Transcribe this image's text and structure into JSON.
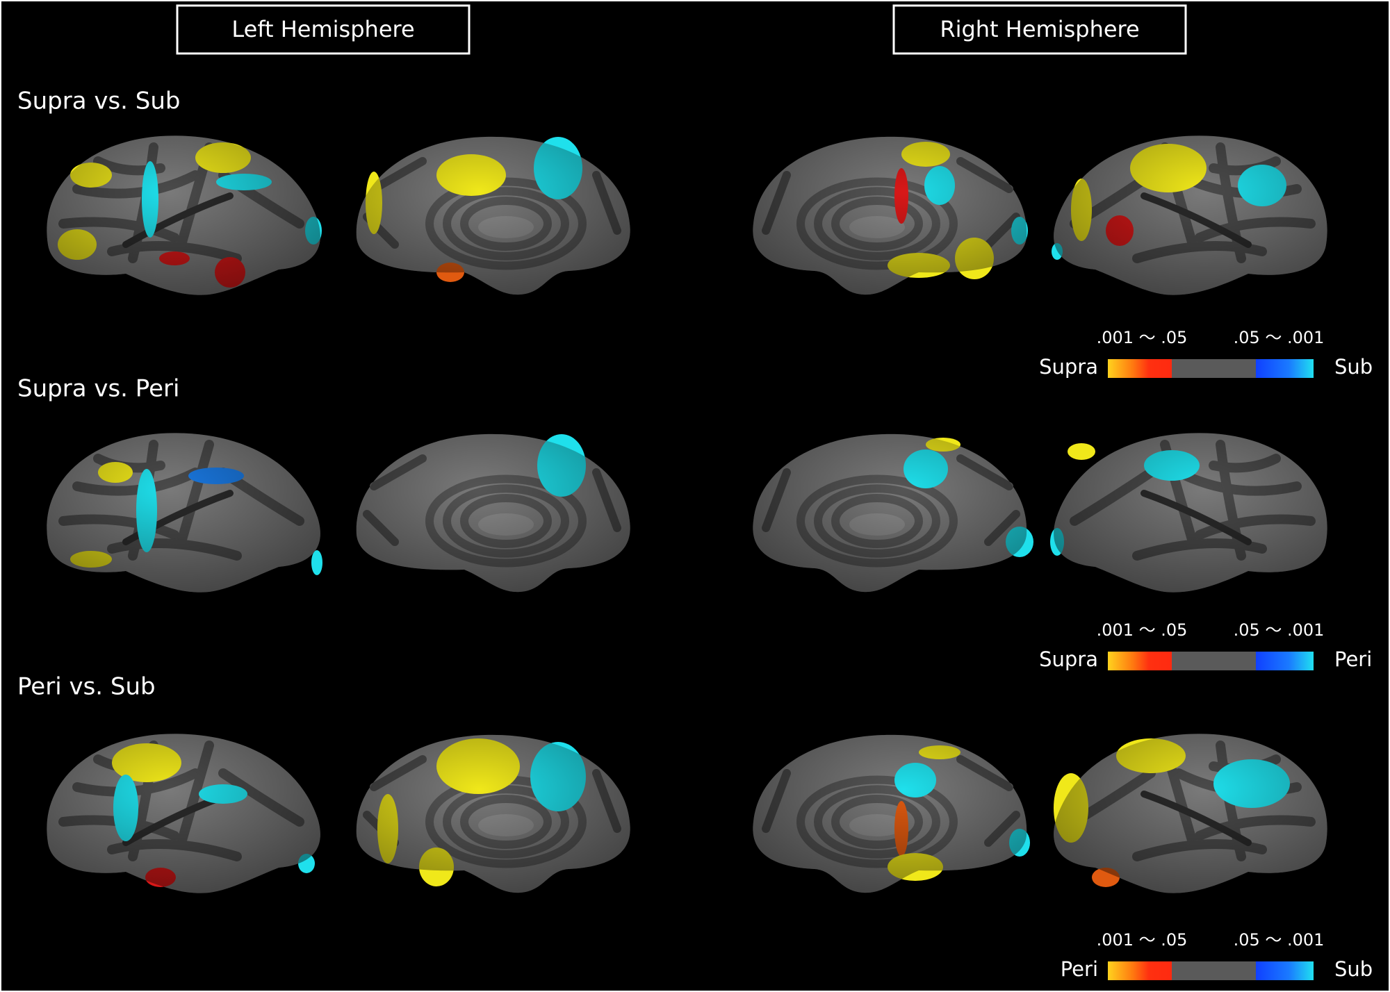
{
  "header": {
    "left_title": "Left Hemisphere",
    "right_title": "Right Hemisphere"
  },
  "rows": [
    {
      "label": "Supra vs. Sub",
      "colorbar": {
        "left_range": ".001 〜 .05",
        "right_range": ".05 〜 .001",
        "left_label": "Supra",
        "right_label": "Sub"
      }
    },
    {
      "label": "Supra vs. Peri",
      "colorbar": {
        "left_range": ".001 〜 .05",
        "right_range": ".05 〜 .001",
        "left_label": "Supra",
        "right_label": "Peri"
      }
    },
    {
      "label": "Peri vs. Sub",
      "colorbar": {
        "left_range": ".001 〜 .05",
        "right_range": ".05 〜 .001",
        "left_label": "Peri",
        "right_label": "Sub"
      }
    }
  ]
}
